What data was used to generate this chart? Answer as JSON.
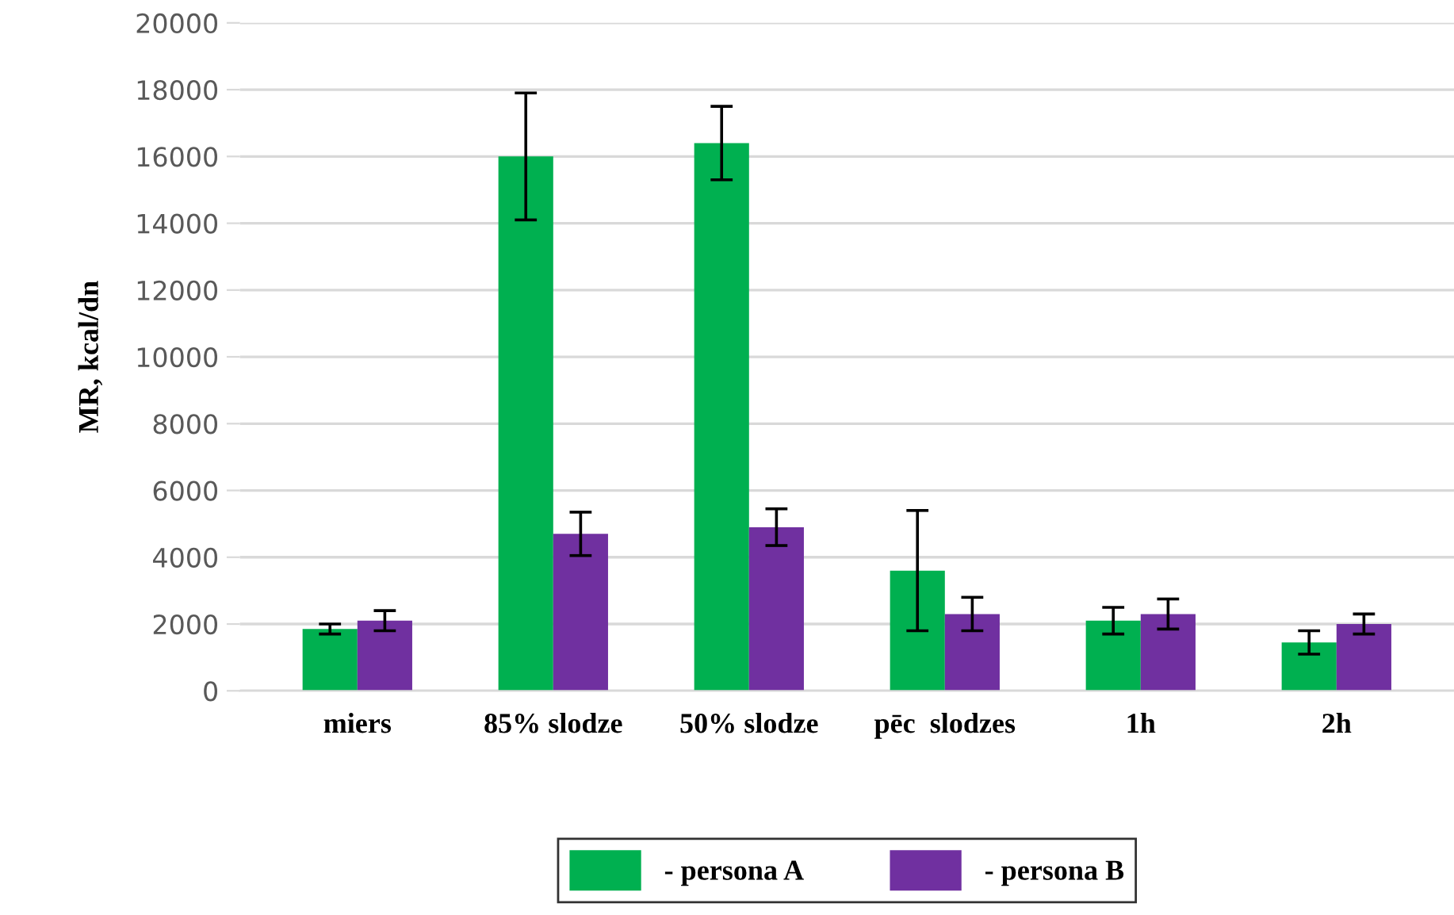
{
  "chart_data": {
    "type": "bar",
    "ylabel": "MR, kcal/dn",
    "categories": [
      "miers",
      "85% slodze",
      "50% slodze",
      "pēc  slodzes",
      "1h",
      "2h"
    ],
    "series": [
      {
        "name": "- persona A",
        "color": "#00b050",
        "values": [
          1850,
          16000,
          16400,
          3600,
          2100,
          1450
        ],
        "errors": [
          150,
          1900,
          1100,
          1800,
          400,
          350
        ]
      },
      {
        "name": "- persona B",
        "color": "#7030a0",
        "values": [
          2100,
          4700,
          4900,
          2300,
          2300,
          2000
        ],
        "errors": [
          300,
          650,
          550,
          500,
          450,
          300
        ]
      }
    ],
    "ylim": [
      0,
      20000
    ],
    "yticks": [
      0,
      2000,
      4000,
      6000,
      8000,
      10000,
      12000,
      14000,
      16000,
      18000,
      20000
    ],
    "grid": "y",
    "legend": "bottom"
  }
}
